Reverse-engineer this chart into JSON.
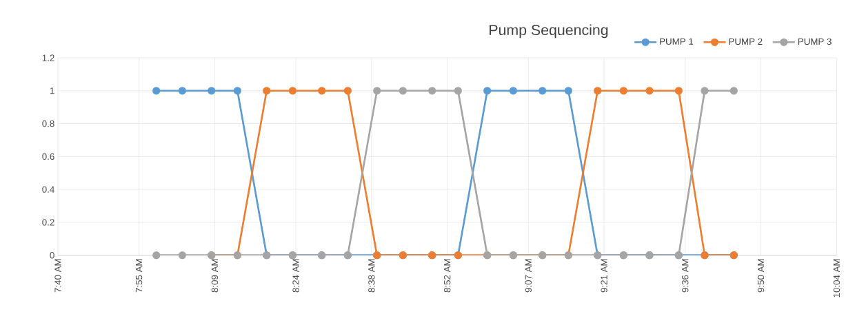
{
  "chart_data": {
    "type": "line",
    "title": "Pump Sequencing",
    "x": [
      7.97,
      8.05,
      8.14,
      8.22,
      8.31,
      8.39,
      8.48,
      8.56,
      8.65,
      8.73,
      8.82,
      8.9,
      8.99,
      9.07,
      9.16,
      9.24,
      9.33,
      9.41,
      9.49,
      9.58,
      9.66,
      9.75
    ],
    "series": [
      {
        "name": "PUMP 1",
        "color": "#5b9bd5",
        "values": [
          1,
          1,
          1,
          1,
          0,
          0,
          0,
          0,
          0,
          0,
          0,
          0,
          1,
          1,
          1,
          1,
          0,
          0,
          0,
          0,
          0,
          0
        ]
      },
      {
        "name": "PUMP 2",
        "color": "#ed7d31",
        "values": [
          null,
          null,
          0,
          0,
          1,
          1,
          1,
          1,
          0,
          0,
          0,
          0,
          0,
          0,
          0,
          0,
          1,
          1,
          1,
          1,
          0,
          0
        ]
      },
      {
        "name": "PUMP 3",
        "color": "#a5a5a5",
        "values": [
          0,
          0,
          0,
          0,
          0,
          0,
          0,
          0,
          1,
          1,
          1,
          1,
          0,
          0,
          0,
          0,
          0,
          0,
          0,
          0,
          1,
          1
        ]
      }
    ],
    "xlim": [
      7.6667,
      10.0667
    ],
    "xticks": [
      {
        "value": 7.6667,
        "label": "7:40 AM"
      },
      {
        "value": 7.9167,
        "label": "7:55 AM"
      },
      {
        "value": 8.15,
        "label": "8:09 AM"
      },
      {
        "value": 8.4,
        "label": "8:24 AM"
      },
      {
        "value": 8.6333,
        "label": "8:38 AM"
      },
      {
        "value": 8.8667,
        "label": "8:52 AM"
      },
      {
        "value": 9.1167,
        "label": "9:07 AM"
      },
      {
        "value": 9.35,
        "label": "9:21 AM"
      },
      {
        "value": 9.6,
        "label": "9:36 AM"
      },
      {
        "value": 9.8333,
        "label": "9:50 AM"
      },
      {
        "value": 10.0667,
        "label": "10:04 AM"
      }
    ],
    "ylim": [
      0,
      1.2
    ],
    "yticks": [
      0,
      0.2,
      0.4,
      0.6,
      0.8,
      1,
      1.2
    ],
    "grid": true,
    "legend": "top right",
    "marker": "circle",
    "line_style": "solid"
  }
}
